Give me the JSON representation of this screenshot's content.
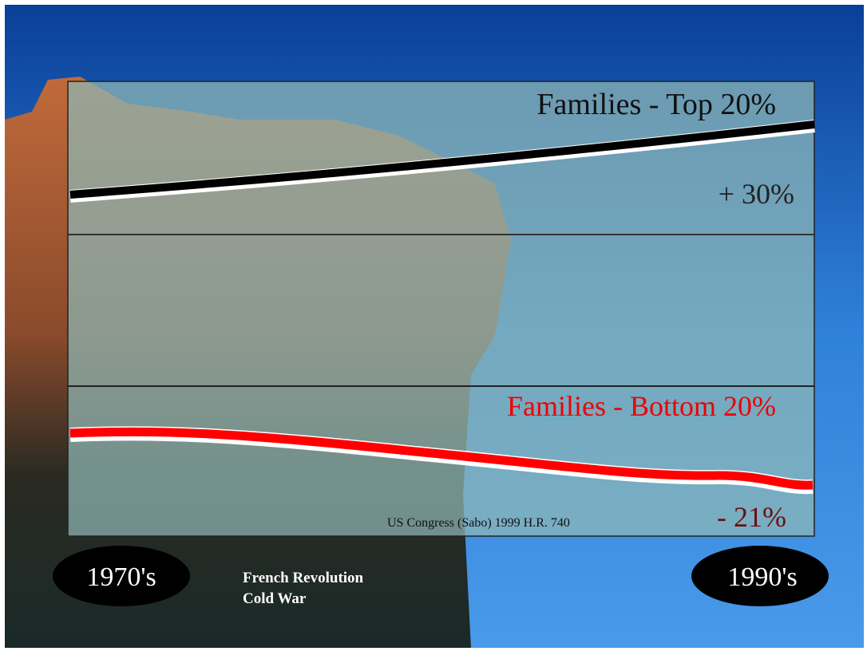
{
  "panel": {
    "top_label": "Families - Top 20%",
    "top_change": "+ 30%",
    "bottom_label": "Families - Bottom 20%",
    "bottom_change": "- 21%",
    "source": "US Congress (Sabo) 1999 H.R. 740"
  },
  "timeline": {
    "start": "1970's",
    "end": "1990's",
    "notes": [
      "French Revolution",
      "Cold War"
    ]
  }
}
